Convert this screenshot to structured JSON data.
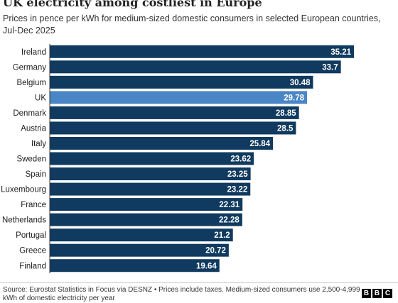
{
  "chart_data": {
    "type": "hbar",
    "title": "UK electricity among costliest in Europe",
    "subtitle": "Prices in pence per kWh for medium-sized domestic consumers in selected European countries, Jul-Dec 2025",
    "categories": [
      "Ireland",
      "Germany",
      "Belgium",
      "UK",
      "Denmark",
      "Austria",
      "Italy",
      "Sweden",
      "Spain",
      "Luxembourg",
      "France",
      "Netherlands",
      "Portugal",
      "Greece",
      "Finland"
    ],
    "values": [
      35.21,
      33.7,
      30.48,
      29.78,
      28.85,
      28.5,
      25.84,
      23.62,
      23.25,
      23.22,
      22.31,
      22.28,
      21.2,
      20.72,
      19.64
    ],
    "color": "#103a5f",
    "highlight": "UK",
    "highlight_color": "#4a86c6",
    "source": "Source: Eurostat Statistics in Focus via DESNZ • Prices include taxes. Medium-sized consumers use 2,500-4,999 kWh of domestic electricity per year",
    "logo": [
      "B",
      "B",
      "C"
    ]
  }
}
